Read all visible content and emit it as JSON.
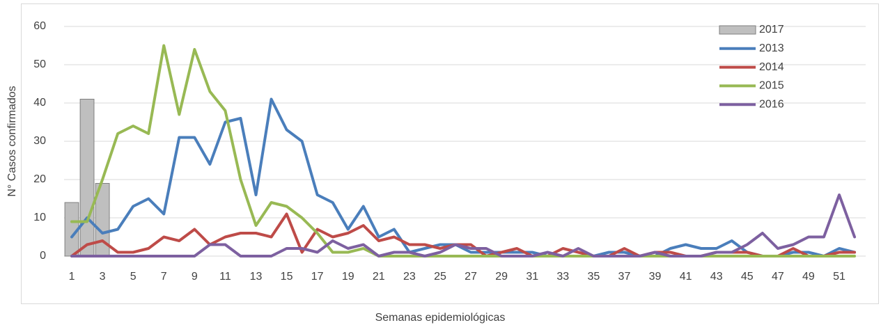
{
  "chart_data": {
    "type": "line",
    "y_label": "N° Casos confirmados",
    "x_label": "Semanas epidemiológicas",
    "categories": [
      1,
      null,
      3,
      null,
      5,
      null,
      7,
      null,
      9,
      null,
      11,
      null,
      13,
      null,
      15,
      null,
      17,
      null,
      19,
      null,
      21,
      null,
      23,
      null,
      25,
      null,
      27,
      null,
      29,
      null,
      31,
      null,
      33,
      null,
      35,
      null,
      37,
      null,
      39,
      null,
      41,
      null,
      43,
      null,
      45,
      null,
      47,
      null,
      49,
      null,
      51,
      null
    ],
    "ylim": [
      0,
      60
    ],
    "yticks": [
      0,
      10,
      20,
      30,
      40,
      50,
      60
    ],
    "grid": true,
    "legend": "top-right",
    "series": [
      {
        "name": "2017",
        "type": "bar",
        "color": "#bfbfbf",
        "values": [
          14,
          41,
          19,
          null,
          null,
          null,
          null,
          null,
          null,
          null,
          null,
          null,
          null,
          null,
          null,
          null,
          null,
          null,
          null,
          null,
          null,
          null,
          null,
          null,
          null,
          null,
          null,
          null,
          null,
          null,
          null,
          null,
          null,
          null,
          null,
          null,
          null,
          null,
          null,
          null,
          null,
          null,
          null,
          null,
          null,
          null,
          null,
          null,
          null,
          null,
          null,
          null
        ]
      },
      {
        "name": "2013",
        "color": "#4a7ebb",
        "values": [
          5,
          10,
          6,
          7,
          13,
          15,
          11,
          31,
          31,
          24,
          35,
          36,
          16,
          41,
          33,
          30,
          16,
          14,
          7,
          13,
          5,
          7,
          1,
          2,
          3,
          3,
          1,
          1,
          1,
          1,
          1,
          0,
          0,
          0,
          0,
          1,
          1,
          0,
          0,
          2,
          3,
          2,
          2,
          4,
          1,
          0,
          0,
          1,
          1,
          0,
          2,
          1
        ]
      },
      {
        "name": "2014",
        "color": "#be4b48",
        "values": [
          0,
          3,
          4,
          1,
          1,
          2,
          5,
          4,
          7,
          3,
          5,
          6,
          6,
          5,
          11,
          1,
          7,
          5,
          6,
          8,
          4,
          5,
          3,
          3,
          2,
          3,
          3,
          0,
          1,
          2,
          0,
          0,
          2,
          1,
          0,
          0,
          2,
          0,
          1,
          1,
          0,
          0,
          1,
          1,
          1,
          0,
          0,
          2,
          0,
          0,
          1,
          1
        ]
      },
      {
        "name": "2015",
        "color": "#98b954",
        "values": [
          9,
          9,
          20,
          32,
          34,
          32,
          55,
          37,
          54,
          43,
          38,
          20,
          8,
          14,
          13,
          10,
          6,
          1,
          1,
          2,
          0,
          0,
          0,
          0,
          0,
          0,
          0,
          0,
          0,
          0,
          0,
          0,
          0,
          0,
          0,
          0,
          0,
          0,
          0,
          0,
          0,
          0,
          0,
          0,
          0,
          0,
          0,
          0,
          0,
          0,
          0,
          0
        ]
      },
      {
        "name": "2016",
        "color": "#7d60a0",
        "values": [
          0,
          0,
          0,
          0,
          0,
          0,
          0,
          0,
          0,
          3,
          3,
          0,
          0,
          0,
          2,
          2,
          1,
          4,
          2,
          3,
          0,
          1,
          1,
          0,
          1,
          3,
          2,
          2,
          0,
          0,
          0,
          1,
          0,
          2,
          0,
          0,
          0,
          0,
          1,
          0,
          0,
          0,
          1,
          1,
          3,
          6,
          2,
          3,
          5,
          5,
          16,
          5
        ]
      }
    ]
  }
}
